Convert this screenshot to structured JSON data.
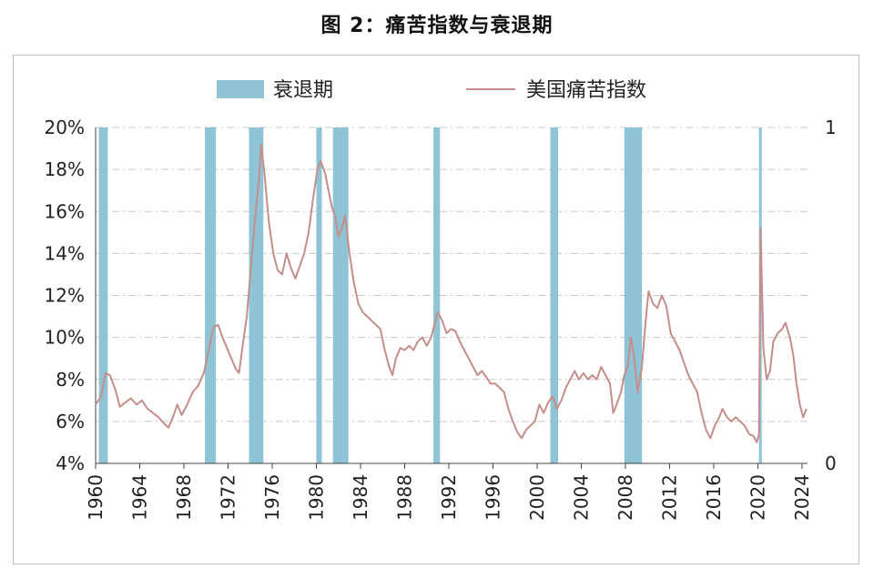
{
  "title": "图 2：痛苦指数与衰退期",
  "colors": {
    "recession": "#8fc3d6",
    "misery_line": "#c48e8a",
    "grid": "#c8c8c8",
    "axis": "#444444"
  },
  "chart_data": {
    "type": "line",
    "title": "图 2：痛苦指数与衰退期",
    "legend": {
      "placement": "top",
      "entries": [
        "衰退期",
        "美国痛苦指数"
      ]
    },
    "x_axis": {
      "ticks": [
        1960,
        1964,
        1968,
        1972,
        1976,
        1980,
        1984,
        1988,
        1992,
        1996,
        2000,
        2004,
        2008,
        2012,
        2016,
        2020,
        2024
      ],
      "range": [
        1960,
        2024.5
      ]
    },
    "y_left": {
      "ticks": [
        "4%",
        "6%",
        "8%",
        "10%",
        "12%",
        "14%",
        "16%",
        "18%",
        "20%"
      ],
      "range": [
        4,
        20
      ]
    },
    "y_right": {
      "ticks": [
        "0",
        "1"
      ],
      "range": [
        0,
        1
      ]
    },
    "grid": true,
    "series": [
      {
        "name": "美国痛苦指数",
        "axis": "left",
        "points": [
          [
            1960.0,
            6.8
          ],
          [
            1960.5,
            7.2
          ],
          [
            1960.9,
            8.3
          ],
          [
            1961.3,
            8.2
          ],
          [
            1961.8,
            7.5
          ],
          [
            1962.2,
            6.7
          ],
          [
            1962.7,
            6.9
          ],
          [
            1963.2,
            7.1
          ],
          [
            1963.7,
            6.8
          ],
          [
            1964.2,
            7.0
          ],
          [
            1964.7,
            6.6
          ],
          [
            1965.2,
            6.4
          ],
          [
            1965.7,
            6.2
          ],
          [
            1966.2,
            5.9
          ],
          [
            1966.6,
            5.7
          ],
          [
            1967.0,
            6.2
          ],
          [
            1967.4,
            6.8
          ],
          [
            1967.8,
            6.3
          ],
          [
            1968.3,
            6.8
          ],
          [
            1968.8,
            7.4
          ],
          [
            1969.3,
            7.7
          ],
          [
            1969.8,
            8.3
          ],
          [
            1970.2,
            9.3
          ],
          [
            1970.7,
            10.5
          ],
          [
            1971.1,
            10.6
          ],
          [
            1971.5,
            10.0
          ],
          [
            1971.9,
            9.5
          ],
          [
            1972.3,
            9.0
          ],
          [
            1972.7,
            8.5
          ],
          [
            1973.0,
            8.3
          ],
          [
            1973.3,
            9.5
          ],
          [
            1973.7,
            11.0
          ],
          [
            1974.1,
            13.5
          ],
          [
            1974.5,
            16.0
          ],
          [
            1974.8,
            17.5
          ],
          [
            1975.0,
            19.2
          ],
          [
            1975.3,
            17.8
          ],
          [
            1975.7,
            15.5
          ],
          [
            1976.1,
            14.0
          ],
          [
            1976.5,
            13.2
          ],
          [
            1976.9,
            13.0
          ],
          [
            1977.3,
            14.0
          ],
          [
            1977.7,
            13.3
          ],
          [
            1978.1,
            12.8
          ],
          [
            1978.5,
            13.4
          ],
          [
            1978.9,
            14.0
          ],
          [
            1979.3,
            15.0
          ],
          [
            1979.7,
            16.6
          ],
          [
            1980.1,
            18.0
          ],
          [
            1980.4,
            18.4
          ],
          [
            1980.8,
            17.8
          ],
          [
            1981.1,
            17.0
          ],
          [
            1981.4,
            16.2
          ],
          [
            1981.7,
            15.8
          ],
          [
            1982.0,
            14.8
          ],
          [
            1982.3,
            15.2
          ],
          [
            1982.6,
            15.8
          ],
          [
            1983.0,
            14.0
          ],
          [
            1983.4,
            12.6
          ],
          [
            1983.8,
            11.6
          ],
          [
            1984.2,
            11.2
          ],
          [
            1984.6,
            11.0
          ],
          [
            1985.0,
            10.8
          ],
          [
            1985.4,
            10.6
          ],
          [
            1985.8,
            10.4
          ],
          [
            1986.2,
            9.4
          ],
          [
            1986.6,
            8.6
          ],
          [
            1986.9,
            8.2
          ],
          [
            1987.2,
            9.0
          ],
          [
            1987.6,
            9.5
          ],
          [
            1988.0,
            9.4
          ],
          [
            1988.4,
            9.6
          ],
          [
            1988.8,
            9.4
          ],
          [
            1989.2,
            9.8
          ],
          [
            1989.6,
            10.0
          ],
          [
            1990.0,
            9.6
          ],
          [
            1990.4,
            10.0
          ],
          [
            1990.7,
            10.6
          ],
          [
            1991.0,
            11.2
          ],
          [
            1991.4,
            10.8
          ],
          [
            1991.8,
            10.2
          ],
          [
            1992.2,
            10.4
          ],
          [
            1992.6,
            10.3
          ],
          [
            1993.0,
            9.8
          ],
          [
            1993.4,
            9.4
          ],
          [
            1993.8,
            9.0
          ],
          [
            1994.2,
            8.6
          ],
          [
            1994.6,
            8.2
          ],
          [
            1995.0,
            8.4
          ],
          [
            1995.4,
            8.1
          ],
          [
            1995.8,
            7.8
          ],
          [
            1996.2,
            7.8
          ],
          [
            1996.6,
            7.6
          ],
          [
            1997.0,
            7.4
          ],
          [
            1997.4,
            6.6
          ],
          [
            1997.8,
            6.0
          ],
          [
            1998.2,
            5.5
          ],
          [
            1998.6,
            5.2
          ],
          [
            1999.0,
            5.6
          ],
          [
            1999.4,
            5.8
          ],
          [
            1999.8,
            6.0
          ],
          [
            2000.2,
            6.8
          ],
          [
            2000.6,
            6.4
          ],
          [
            2001.0,
            6.9
          ],
          [
            2001.4,
            7.2
          ],
          [
            2001.8,
            6.6
          ],
          [
            2002.2,
            7.0
          ],
          [
            2002.6,
            7.6
          ],
          [
            2003.0,
            8.0
          ],
          [
            2003.4,
            8.4
          ],
          [
            2003.8,
            8.0
          ],
          [
            2004.2,
            8.3
          ],
          [
            2004.6,
            8.0
          ],
          [
            2005.0,
            8.2
          ],
          [
            2005.4,
            8.0
          ],
          [
            2005.8,
            8.6
          ],
          [
            2006.2,
            8.2
          ],
          [
            2006.6,
            7.8
          ],
          [
            2006.9,
            6.4
          ],
          [
            2007.2,
            6.8
          ],
          [
            2007.6,
            7.4
          ],
          [
            2007.9,
            8.2
          ],
          [
            2008.2,
            8.6
          ],
          [
            2008.5,
            10.0
          ],
          [
            2008.8,
            9.0
          ],
          [
            2009.1,
            7.4
          ],
          [
            2009.5,
            8.6
          ],
          [
            2009.8,
            10.6
          ],
          [
            2010.1,
            12.2
          ],
          [
            2010.5,
            11.6
          ],
          [
            2010.9,
            11.4
          ],
          [
            2011.3,
            12.0
          ],
          [
            2011.7,
            11.5
          ],
          [
            2012.1,
            10.2
          ],
          [
            2012.5,
            9.8
          ],
          [
            2012.9,
            9.4
          ],
          [
            2013.3,
            8.8
          ],
          [
            2013.7,
            8.2
          ],
          [
            2014.1,
            7.8
          ],
          [
            2014.5,
            7.4
          ],
          [
            2014.9,
            6.4
          ],
          [
            2015.3,
            5.6
          ],
          [
            2015.7,
            5.2
          ],
          [
            2016.1,
            5.8
          ],
          [
            2016.5,
            6.2
          ],
          [
            2016.8,
            6.6
          ],
          [
            2017.2,
            6.2
          ],
          [
            2017.6,
            6.0
          ],
          [
            2018.0,
            6.2
          ],
          [
            2018.4,
            6.0
          ],
          [
            2018.8,
            5.8
          ],
          [
            2019.2,
            5.4
          ],
          [
            2019.6,
            5.3
          ],
          [
            2019.9,
            5.0
          ],
          [
            2020.1,
            5.4
          ],
          [
            2020.25,
            15.2
          ],
          [
            2020.5,
            9.5
          ],
          [
            2020.8,
            8.0
          ],
          [
            2021.1,
            8.4
          ],
          [
            2021.4,
            9.8
          ],
          [
            2021.8,
            10.2
          ],
          [
            2022.2,
            10.4
          ],
          [
            2022.5,
            10.7
          ],
          [
            2022.9,
            10.0
          ],
          [
            2023.2,
            9.2
          ],
          [
            2023.5,
            7.8
          ],
          [
            2023.8,
            6.8
          ],
          [
            2024.1,
            6.2
          ],
          [
            2024.4,
            6.6
          ]
        ]
      },
      {
        "name": "衰退期",
        "axis": "right",
        "type": "shaded_periods",
        "periods": [
          [
            1960.3,
            1961.1
          ],
          [
            1969.9,
            1970.9
          ],
          [
            1973.9,
            1975.2
          ],
          [
            1980.0,
            1980.5
          ],
          [
            1981.5,
            1982.9
          ],
          [
            1990.6,
            1991.2
          ],
          [
            2001.2,
            2001.9
          ],
          [
            2007.9,
            2009.5
          ],
          [
            2020.1,
            2020.35
          ]
        ]
      }
    ]
  }
}
